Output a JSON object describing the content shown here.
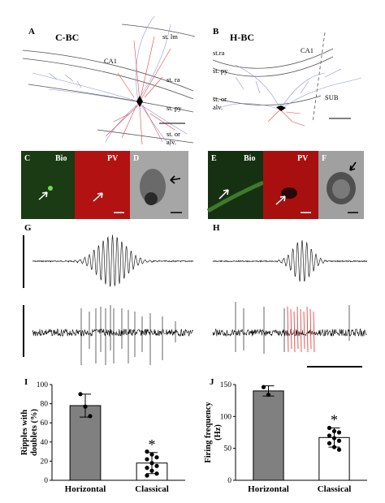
{
  "panels": {
    "A": {
      "label": "A",
      "title": "C-BC",
      "region": "CA1",
      "layers": [
        "st. lm",
        "st. ra",
        "st. py",
        "st. or",
        "alv."
      ]
    },
    "B": {
      "label": "B",
      "title": "H-BC",
      "region": "CA1",
      "sub": "SUB",
      "layers": [
        "st.ra",
        "st. py",
        "st. or",
        "alv."
      ]
    },
    "C": {
      "label": "C",
      "bio": "Bio",
      "pv": "PV"
    },
    "D": {
      "label": "D"
    },
    "E": {
      "label": "E",
      "bio": "Bio",
      "pv": "PV"
    },
    "F": {
      "label": "F"
    },
    "G": {
      "label": "G"
    },
    "H": {
      "label": "H"
    },
    "I": {
      "label": "I"
    },
    "J": {
      "label": "J"
    }
  },
  "colors": {
    "axon": "#e04a4a",
    "dendrite": "#8a94d8",
    "bio_green": "#1f7a1f",
    "pv_red": "#c41414",
    "em_gray": "#9a9a9a",
    "bar_filled": "#808080",
    "bar_open": "#ffffff",
    "spike_highlight": "#e23030"
  },
  "chart_data": [
    {
      "id": "I",
      "type": "bar",
      "ylabel": "Ripples with doublets (%)",
      "categories": [
        "Horizontal",
        "Classical"
      ],
      "values": [
        78,
        18
      ],
      "errors": [
        12,
        11
      ],
      "points": [
        [
          90,
          77,
          67
        ],
        [
          30,
          27,
          24,
          22,
          18,
          15,
          13,
          10,
          7,
          5
        ]
      ],
      "ylim": [
        0,
        100
      ],
      "yticks": [
        0,
        20,
        40,
        60,
        80,
        100
      ],
      "fills": [
        "#808080",
        "#ffffff"
      ],
      "significance": [
        "",
        "*"
      ]
    },
    {
      "id": "J",
      "type": "bar",
      "ylabel": "Firing frequency (Hz)",
      "categories": [
        "Horizontal",
        "Classical"
      ],
      "values": [
        140,
        67
      ],
      "errors": [
        8,
        15
      ],
      "points": [
        [
          146,
          134
        ],
        [
          82,
          77,
          75,
          70,
          66,
          62,
          58,
          52,
          48
        ]
      ],
      "ylim": [
        0,
        150
      ],
      "yticks": [
        0,
        50,
        100,
        150
      ],
      "fills": [
        "#808080",
        "#ffffff"
      ],
      "significance": [
        "",
        "*"
      ]
    }
  ]
}
